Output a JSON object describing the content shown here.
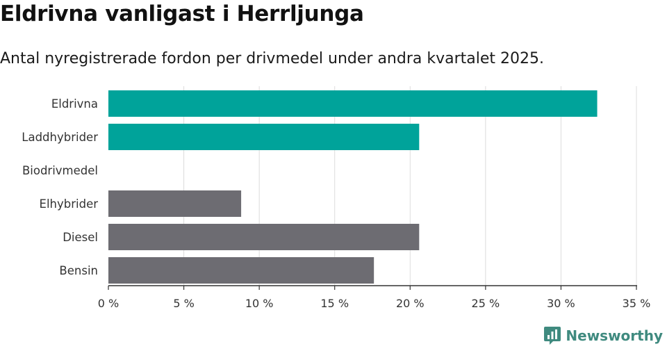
{
  "header": {
    "title": "Eldrivna vanligast i Herrljunga",
    "subtitle": "Antal nyregistrerade fordon per drivmedel under andra kvartalet 2025."
  },
  "chart_data": {
    "type": "bar",
    "orientation": "horizontal",
    "categories": [
      "Eldrivna",
      "Laddhybrider",
      "Biodrivmedel",
      "Elhybrider",
      "Diesel",
      "Bensin"
    ],
    "values": [
      32.4,
      20.6,
      0,
      8.8,
      20.6,
      17.6
    ],
    "bar_colors": [
      "#00a39a",
      "#00a39a",
      "#00a39a",
      "#6d6c72",
      "#6d6c72",
      "#6d6c72"
    ],
    "xlim": [
      0,
      35
    ],
    "x_ticks": [
      0,
      5,
      10,
      15,
      20,
      25,
      30,
      35
    ],
    "x_tick_labels": [
      "0 %",
      "5 %",
      "10 %",
      "15 %",
      "20 %",
      "25 %",
      "30 %",
      "35 %"
    ],
    "grid": true,
    "xlabel": "",
    "ylabel": ""
  },
  "brand": {
    "name": "Newsworthy",
    "color": "#3f8a7f",
    "icon": "bar-chart-speech-bubble-icon"
  }
}
